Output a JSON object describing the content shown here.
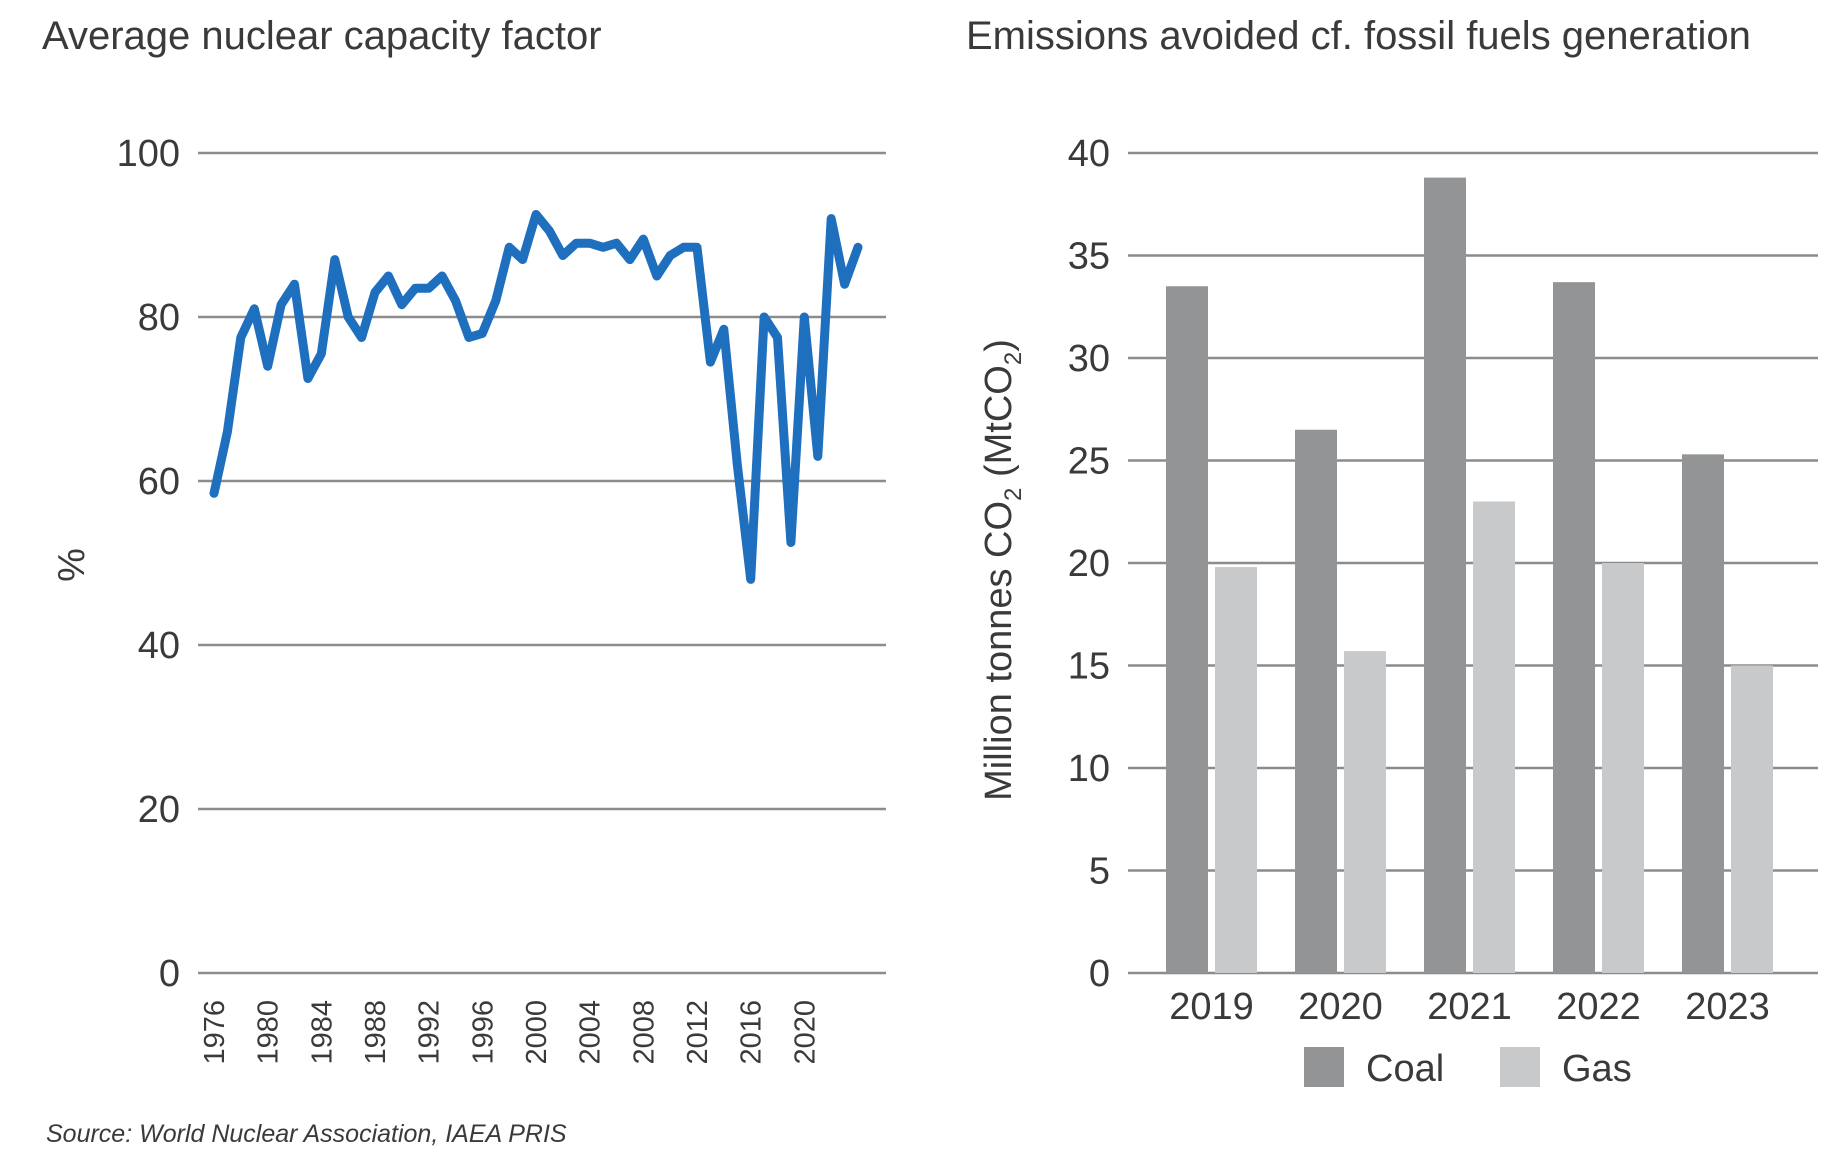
{
  "source": "Source: World Nuclear Association, IAEA PRIS",
  "chart_data": [
    {
      "type": "line",
      "title": "Average nuclear capacity factor",
      "ylabel": "%",
      "xlabel": "",
      "ylim": [
        0,
        100
      ],
      "yticks": [
        "0",
        "20",
        "40",
        "60",
        "80",
        "100"
      ],
      "xticks": [
        "1976",
        "1980",
        "1984",
        "1988",
        "1992",
        "1996",
        "2000",
        "2004",
        "2008",
        "2012",
        "2016",
        "2020"
      ],
      "grid": true,
      "color": "#1f6fbf",
      "x": [
        1976,
        1977,
        1978,
        1979,
        1980,
        1981,
        1982,
        1983,
        1984,
        1985,
        1986,
        1987,
        1988,
        1989,
        1990,
        1991,
        1992,
        1993,
        1994,
        1995,
        1996,
        1997,
        1998,
        1999,
        2000,
        2001,
        2002,
        2003,
        2004,
        2005,
        2006,
        2007,
        2008,
        2009,
        2010,
        2011,
        2012,
        2013,
        2014,
        2015,
        2016,
        2017,
        2018,
        2019,
        2020,
        2021,
        2022,
        2023,
        2024
      ],
      "values": [
        58.5,
        66,
        77.5,
        81,
        74,
        81.5,
        84,
        72.5,
        75.5,
        87,
        80,
        77.5,
        83,
        85,
        81.5,
        83.5,
        83.5,
        85,
        82,
        77.5,
        78,
        82,
        88.5,
        87,
        92.5,
        90.5,
        87.5,
        89,
        89,
        88.5,
        89,
        87,
        89.5,
        85,
        87.5,
        88.5,
        88.5,
        74.5,
        78.5,
        62,
        48,
        80,
        77.5,
        52.5,
        80,
        63,
        92,
        84,
        88.5
      ]
    },
    {
      "type": "bar",
      "title": "Emissions avoided cf. fossil fuels generation",
      "ylabel_main": "Million tonnes CO",
      "ylabel_sub": "2",
      "ylabel_unit_open": " (MtCO",
      "ylabel_unit_sub": "2",
      "ylabel_unit_close": ")",
      "xlabel": "",
      "ylim": [
        0,
        40
      ],
      "yticks": [
        "0",
        "5",
        "10",
        "15",
        "20",
        "25",
        "30",
        "35",
        "40"
      ],
      "categories": [
        "2019",
        "2020",
        "2021",
        "2022",
        "2023"
      ],
      "grid": true,
      "legend_position": "bottom",
      "series": [
        {
          "name": "Coal",
          "color": "#939496",
          "values": [
            33.5,
            26.5,
            38.8,
            33.7,
            25.3
          ]
        },
        {
          "name": "Gas",
          "color": "#c8c9cb",
          "values": [
            19.8,
            15.7,
            23.0,
            20.0,
            15.0
          ]
        }
      ]
    }
  ]
}
